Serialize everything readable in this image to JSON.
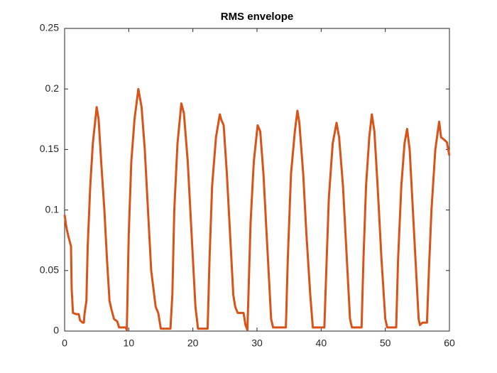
{
  "chart_data": {
    "type": "line",
    "title": "RMS envelope",
    "x": [
      0,
      0.3,
      0.6,
      1.0,
      1.1,
      1.3,
      1.8,
      2.2,
      2.4,
      2.8,
      3.0,
      3.1,
      3.4,
      3.6,
      4.0,
      4.4,
      4.8,
      5.0,
      5.3,
      5.7,
      6.2,
      6.6,
      7.0,
      7.3,
      7.7,
      8.2,
      8.5,
      9.5,
      9.7,
      10.0,
      10.4,
      10.9,
      11.5,
      12.0,
      12.5,
      13.0,
      13.5,
      14.2,
      14.6,
      15.0,
      16.5,
      16.8,
      17.1,
      17.6,
      18.2,
      18.6,
      19.2,
      19.8,
      20.4,
      20.8,
      22.3,
      22.6,
      23.0,
      23.6,
      24.2,
      24.4,
      24.8,
      25.3,
      25.8,
      26.3,
      26.6,
      27.0,
      27.9,
      28.2,
      28.5,
      29.0,
      29.5,
      30.1,
      30.5,
      31.0,
      31.6,
      32.2,
      32.5,
      34.5,
      34.8,
      35.3,
      35.9,
      36.3,
      36.6,
      37.2,
      37.7,
      38.3,
      38.7,
      40.5,
      40.8,
      41.2,
      41.8,
      42.4,
      42.8,
      43.4,
      43.9,
      44.5,
      44.8,
      46.3,
      46.6,
      47.0,
      47.5,
      47.9,
      48.3,
      48.8,
      49.4,
      50.0,
      50.3,
      51.7,
      52.0,
      52.5,
      53.0,
      53.4,
      53.8,
      54.3,
      54.8,
      55.2,
      55.4,
      55.8,
      56.5,
      56.8,
      57.2,
      57.8,
      58.4,
      58.7,
      59.2,
      59.6,
      60.0
    ],
    "values": [
      0.096,
      0.085,
      0.078,
      0.07,
      0.035,
      0.015,
      0.014,
      0.014,
      0.009,
      0.007,
      0.007,
      0.014,
      0.025,
      0.07,
      0.12,
      0.155,
      0.175,
      0.185,
      0.175,
      0.14,
      0.1,
      0.06,
      0.025,
      0.018,
      0.01,
      0.008,
      0.003,
      0.003,
      0.001,
      0.08,
      0.14,
      0.175,
      0.2,
      0.185,
      0.15,
      0.1,
      0.05,
      0.02,
      0.015,
      0.002,
      0.002,
      0.03,
      0.1,
      0.155,
      0.188,
      0.18,
      0.14,
      0.08,
      0.02,
      0.002,
      0.002,
      0.06,
      0.12,
      0.16,
      0.179,
      0.175,
      0.17,
      0.13,
      0.08,
      0.03,
      0.02,
      0.015,
      0.015,
      0.005,
      0.001,
      0.09,
      0.14,
      0.17,
      0.165,
      0.13,
      0.07,
      0.01,
      0.003,
      0.003,
      0.06,
      0.13,
      0.165,
      0.182,
      0.172,
      0.13,
      0.08,
      0.03,
      0.003,
      0.003,
      0.05,
      0.11,
      0.155,
      0.172,
      0.16,
      0.12,
      0.07,
      0.01,
      0.003,
      0.003,
      0.06,
      0.12,
      0.16,
      0.179,
      0.165,
      0.12,
      0.06,
      0.01,
      0.003,
      0.003,
      0.06,
      0.12,
      0.155,
      0.167,
      0.15,
      0.1,
      0.05,
      0.01,
      0.005,
      0.007,
      0.007,
      0.05,
      0.1,
      0.15,
      0.173,
      0.16,
      0.158,
      0.156,
      0.145
    ],
    "color": "#d95319",
    "xlim": [
      0,
      60
    ],
    "xticks": [
      0,
      10,
      20,
      30,
      40,
      50,
      60
    ],
    "ylim": [
      0,
      0.25
    ],
    "yticks": [
      0,
      0.05,
      0.1,
      0.15,
      0.2,
      0.25
    ]
  }
}
